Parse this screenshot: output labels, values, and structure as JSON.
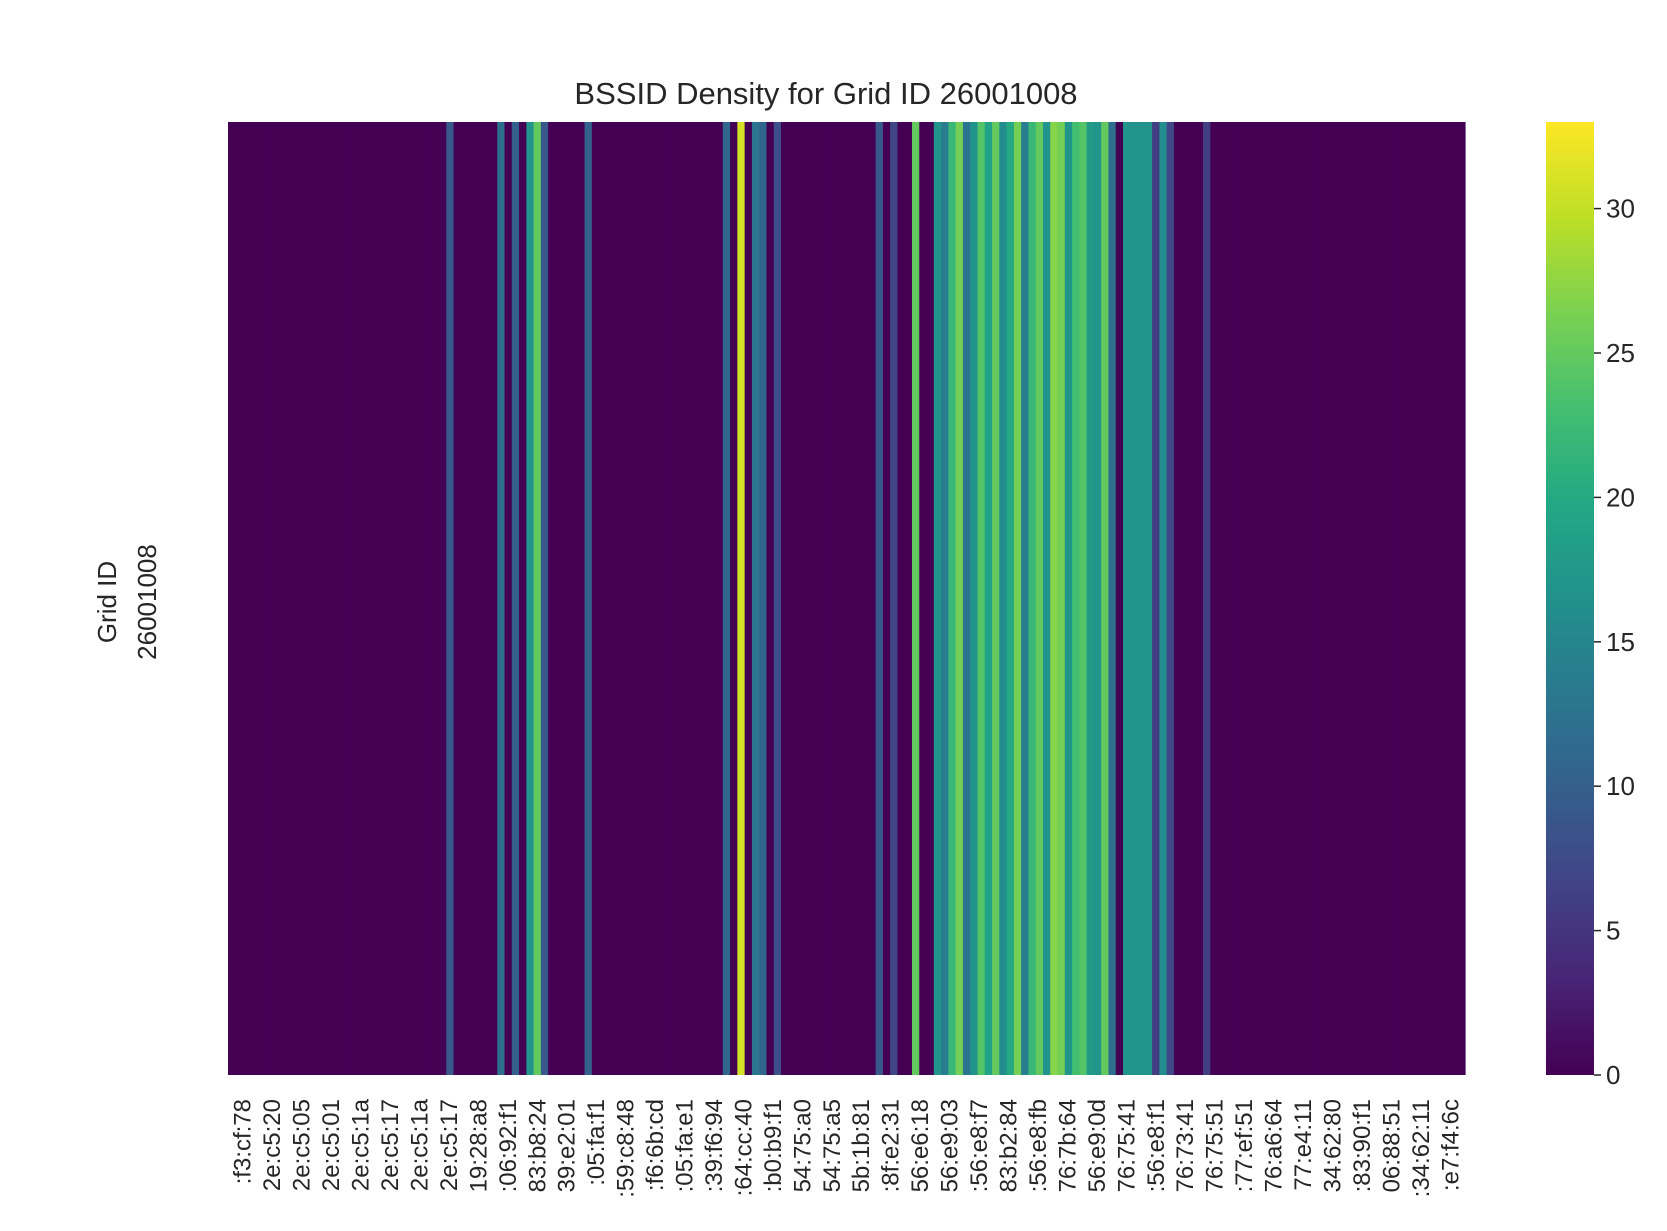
{
  "chart_data": {
    "type": "heatmap",
    "title": "BSSID Density for Grid ID 26001008",
    "ylabel": "Grid ID",
    "y_categories": [
      "26001008"
    ],
    "x_tick_labels": [
      ":f3:cf:78",
      "2e:c5:20",
      "2e:c5:05",
      "2e:c5:01",
      "2e:c5:1a",
      "2e:c5:17",
      "2e:c5:1a",
      "2e:c5:17",
      "19:28:a8",
      ":06:92:f1",
      "83:b8:24",
      "39:e2:01",
      ":05:fa:f1",
      ":59:c8:48",
      ":f6:6b:cd",
      ":05:fa:e1",
      ":39:f6:94",
      ":64:cc:40",
      ":b0:b9:f1",
      "54:75:a0",
      "54:75:a5",
      "5b:1b:81",
      ":8f:e2:31",
      "56:e6:18",
      "56:e9:03",
      ":56:e8:f7",
      "83:b2:84",
      ":56:e8:fb",
      "76:7b:64",
      "56:e9:0d",
      "76:75:41",
      ":56:e8:f1",
      "76:73:41",
      "76:75:51",
      ":77:ef:51",
      "76:a6:64",
      "77:e4:11",
      "34:62:80",
      ":83:90:f1",
      "06:88:51",
      ":34:62:11",
      ":e7:f4:6c"
    ],
    "n_columns": 168,
    "values": [
      0,
      0,
      0,
      0,
      0,
      0,
      0,
      0,
      0,
      0,
      0,
      0,
      0,
      0,
      0,
      0,
      0,
      0,
      0,
      0,
      0,
      0,
      0,
      0,
      0,
      0,
      0,
      0,
      0,
      0,
      9,
      0,
      0,
      0,
      0,
      0,
      0,
      12,
      0,
      10,
      0,
      17,
      25,
      9,
      0,
      0,
      0,
      0,
      0,
      10,
      0,
      0,
      0,
      0,
      0,
      0,
      0,
      0,
      0,
      0,
      0,
      0,
      0,
      0,
      0,
      0,
      0,
      0,
      11,
      0,
      31,
      0,
      13,
      11,
      0,
      8,
      0,
      0,
      0,
      0,
      0,
      0,
      0,
      0,
      0,
      0,
      0,
      0,
      0,
      9,
      0,
      7,
      0,
      0,
      25,
      0,
      0,
      17,
      14,
      22,
      26,
      13,
      17,
      24,
      19,
      25,
      16,
      20,
      26,
      14,
      22,
      25,
      17,
      27,
      26,
      17,
      23,
      24,
      18,
      17,
      25,
      12,
      0,
      17,
      17,
      17,
      17,
      6,
      16,
      7,
      0,
      0,
      0,
      0,
      6,
      0,
      0,
      0,
      0,
      0,
      0,
      0,
      0,
      0,
      0,
      0,
      0,
      0,
      0,
      0,
      0,
      0,
      0,
      0,
      0,
      0,
      0,
      0,
      0,
      0,
      0,
      0,
      0,
      0,
      0,
      0,
      0,
      0,
      0,
      0
    ],
    "colorbar": {
      "min": 0,
      "max": 33,
      "ticks": [
        0,
        5,
        10,
        15,
        20,
        25,
        30
      ],
      "colormap": "viridis"
    },
    "grid": false
  },
  "colors": {
    "low": "#440154",
    "high": "#fde725"
  }
}
